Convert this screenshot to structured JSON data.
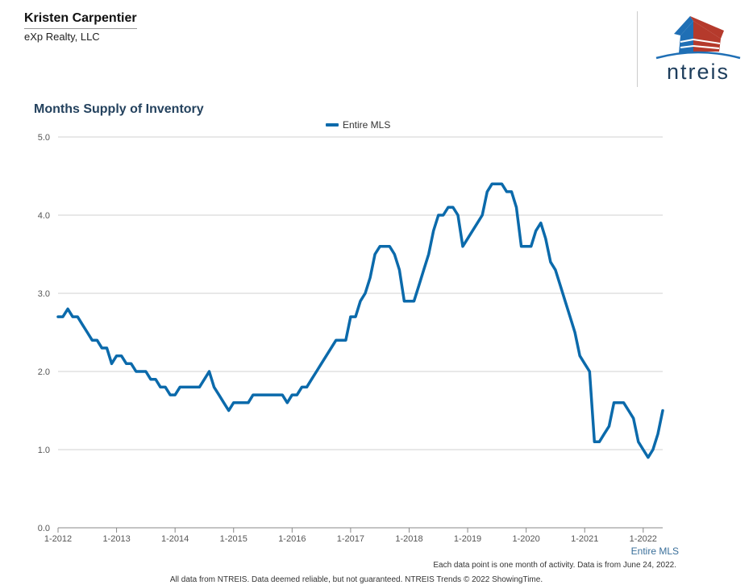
{
  "header": {
    "agent_name": "Kristen Carpentier",
    "company": "eXp Realty, LLC",
    "logo_text": "ntreis",
    "logo_colors": {
      "blue": "#1f6fb5",
      "red": "#b53a2c",
      "text": "#1d3d5c"
    }
  },
  "chart_data": {
    "type": "line",
    "title": "Months Supply of Inventory",
    "legend_position": "top-center",
    "grid": true,
    "xlabel": "",
    "ylabel": "",
    "ylim": [
      0,
      5
    ],
    "yticks": [
      "0.0",
      "1.0",
      "2.0",
      "3.0",
      "4.0",
      "5.0"
    ],
    "xticks": [
      "1-2012",
      "1-2013",
      "1-2014",
      "1-2015",
      "1-2016",
      "1-2017",
      "1-2018",
      "1-2019",
      "1-2020",
      "1-2021",
      "1-2022"
    ],
    "x_start": "1-2012",
    "x_end": "5-2022",
    "series": [
      {
        "name": "Entire MLS",
        "color": "#0b6aab",
        "x": [
          "1-2012",
          "2-2012",
          "3-2012",
          "4-2012",
          "5-2012",
          "6-2012",
          "7-2012",
          "8-2012",
          "9-2012",
          "10-2012",
          "11-2012",
          "12-2012",
          "1-2013",
          "2-2013",
          "3-2013",
          "4-2013",
          "5-2013",
          "6-2013",
          "7-2013",
          "8-2013",
          "9-2013",
          "10-2013",
          "11-2013",
          "12-2013",
          "1-2014",
          "2-2014",
          "3-2014",
          "4-2014",
          "5-2014",
          "6-2014",
          "7-2014",
          "8-2014",
          "9-2014",
          "10-2014",
          "11-2014",
          "12-2014",
          "1-2015",
          "2-2015",
          "3-2015",
          "4-2015",
          "5-2015",
          "6-2015",
          "7-2015",
          "8-2015",
          "9-2015",
          "10-2015",
          "11-2015",
          "12-2015",
          "1-2016",
          "2-2016",
          "3-2016",
          "4-2016",
          "5-2016",
          "6-2016",
          "7-2016",
          "8-2016",
          "9-2016",
          "10-2016",
          "11-2016",
          "12-2016",
          "1-2017",
          "2-2017",
          "3-2017",
          "4-2017",
          "5-2017",
          "6-2017",
          "7-2017",
          "8-2017",
          "9-2017",
          "10-2017",
          "11-2017",
          "12-2017",
          "1-2018",
          "2-2018",
          "3-2018",
          "4-2018",
          "5-2018",
          "6-2018",
          "7-2018",
          "8-2018",
          "9-2018",
          "10-2018",
          "11-2018",
          "12-2018",
          "1-2019",
          "2-2019",
          "3-2019",
          "4-2019",
          "5-2019",
          "6-2019",
          "7-2019",
          "8-2019",
          "9-2019",
          "10-2019",
          "11-2019",
          "12-2019",
          "1-2020",
          "2-2020",
          "3-2020",
          "4-2020",
          "5-2020",
          "6-2020",
          "7-2020",
          "8-2020",
          "9-2020",
          "10-2020",
          "11-2020",
          "12-2020",
          "1-2021",
          "2-2021",
          "3-2021",
          "4-2021",
          "5-2021",
          "6-2021",
          "7-2021",
          "8-2021",
          "9-2021",
          "10-2021",
          "11-2021",
          "12-2021",
          "1-2022",
          "2-2022",
          "3-2022",
          "4-2022",
          "5-2022"
        ],
        "values": [
          2.7,
          2.7,
          2.8,
          2.7,
          2.7,
          2.6,
          2.5,
          2.4,
          2.4,
          2.3,
          2.3,
          2.1,
          2.2,
          2.2,
          2.1,
          2.1,
          2.0,
          2.0,
          2.0,
          1.9,
          1.9,
          1.8,
          1.8,
          1.7,
          1.7,
          1.8,
          1.8,
          1.8,
          1.8,
          1.8,
          1.9,
          2.0,
          1.8,
          1.7,
          1.6,
          1.5,
          1.6,
          1.6,
          1.6,
          1.6,
          1.7,
          1.7,
          1.7,
          1.7,
          1.7,
          1.7,
          1.7,
          1.6,
          1.7,
          1.7,
          1.8,
          1.8,
          1.9,
          2.0,
          2.1,
          2.2,
          2.3,
          2.4,
          2.4,
          2.4,
          2.7,
          2.7,
          2.9,
          3.0,
          3.2,
          3.5,
          3.6,
          3.6,
          3.6,
          3.5,
          3.3,
          2.9,
          2.9,
          2.9,
          3.1,
          3.3,
          3.5,
          3.8,
          4.0,
          4.0,
          4.1,
          4.1,
          4.0,
          3.6,
          3.7,
          3.8,
          3.9,
          4.0,
          4.3,
          4.4,
          4.4,
          4.4,
          4.3,
          4.3,
          4.1,
          3.6,
          3.6,
          3.6,
          3.8,
          3.9,
          3.7,
          3.4,
          3.3,
          3.1,
          2.9,
          2.7,
          2.5,
          2.2,
          2.1,
          2.0,
          1.1,
          1.1,
          1.2,
          1.3,
          1.6,
          1.6,
          1.6,
          1.5,
          1.4,
          1.1,
          1.0,
          0.9,
          1.0,
          1.2,
          1.5
        ]
      }
    ]
  },
  "footer": {
    "series_label": "Entire MLS",
    "note": "Each data point is one month of activity. Data is from June 24, 2022.",
    "disclaimer": "All data from NTREIS. Data deemed reliable, but not guaranteed. NTREIS Trends © 2022 ShowingTime."
  }
}
